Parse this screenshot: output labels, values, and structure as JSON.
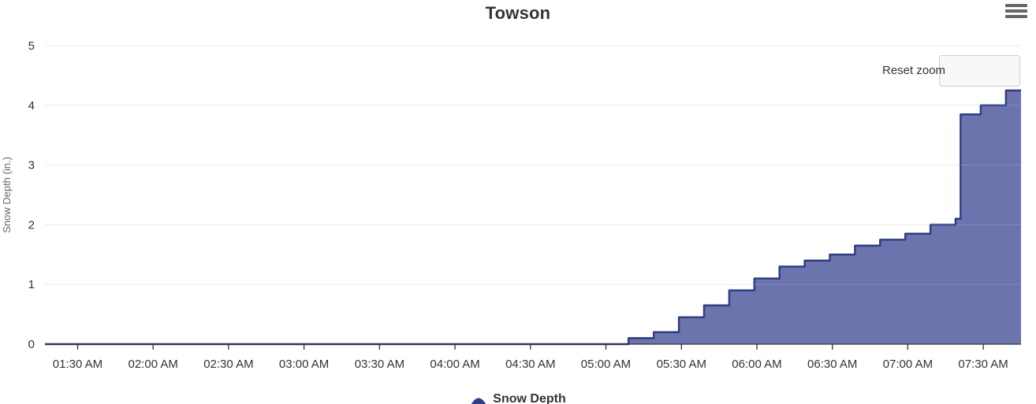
{
  "header": {
    "title": "Towson"
  },
  "toolbar": {
    "reset_zoom_label": "Reset zoom"
  },
  "legend": {
    "items": [
      {
        "label": "Snow Depth",
        "marker": "area-mound-icon"
      }
    ]
  },
  "colors": {
    "area_fill": "#6b74ad",
    "line": "#2e3d85",
    "grid": "#e6e6e6",
    "axis": "#333333",
    "tick_text": "#333333",
    "muted_text": "#666666",
    "button_bg": "#f8f8f8",
    "button_border": "#cccccc",
    "menu_icon": "#666666"
  },
  "chart_data": {
    "type": "area",
    "step": "left",
    "title": "Towson",
    "xlabel": "",
    "ylabel": "Snow Depth (in.)",
    "ylim": [
      0,
      5
    ],
    "y_ticks": [
      0,
      1,
      2,
      3,
      4,
      5
    ],
    "x_range": [
      "01:17 AM",
      "07:45 AM"
    ],
    "x_ticks": [
      "01:30 AM",
      "02:00 AM",
      "02:30 AM",
      "03:00 AM",
      "03:30 AM",
      "04:00 AM",
      "04:30 AM",
      "05:00 AM",
      "05:30 AM",
      "06:00 AM",
      "06:30 AM",
      "07:00 AM",
      "07:30 AM"
    ],
    "grid": "horizontal-only",
    "legend_position": "bottom-center",
    "series": [
      {
        "name": "Snow Depth",
        "points": [
          [
            "01:17 AM",
            0
          ],
          [
            "02:00 AM",
            0
          ],
          [
            "03:00 AM",
            0
          ],
          [
            "04:00 AM",
            0
          ],
          [
            "05:00 AM",
            0
          ],
          [
            "05:09 AM",
            0.1
          ],
          [
            "05:19 AM",
            0.2
          ],
          [
            "05:29 AM",
            0.45
          ],
          [
            "05:39 AM",
            0.65
          ],
          [
            "05:49 AM",
            0.9
          ],
          [
            "05:59 AM",
            1.1
          ],
          [
            "06:09 AM",
            1.3
          ],
          [
            "06:19 AM",
            1.4
          ],
          [
            "06:29 AM",
            1.5
          ],
          [
            "06:39 AM",
            1.65
          ],
          [
            "06:49 AM",
            1.75
          ],
          [
            "06:59 AM",
            1.85
          ],
          [
            "07:09 AM",
            2.0
          ],
          [
            "07:19 AM",
            2.1
          ],
          [
            "07:21 AM",
            3.85
          ],
          [
            "07:29 AM",
            4.0
          ],
          [
            "07:39 AM",
            4.25
          ],
          [
            "07:45 AM",
            4.25
          ]
        ]
      }
    ]
  }
}
